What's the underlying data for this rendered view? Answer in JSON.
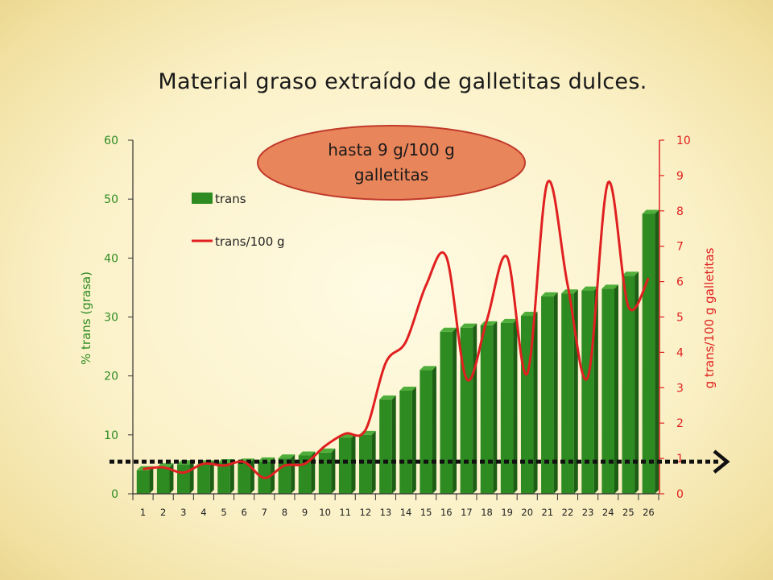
{
  "title": "Material graso extraído de galletitas dulces.",
  "callout": {
    "line1": "hasta 9 g/100 g",
    "line2": "galletitas"
  },
  "colors": {
    "bar": "#2e8b22",
    "bar_dark": "#1d5e15",
    "bar_light": "#4fae3a",
    "line": "#e02020",
    "left_axis": "#2e8b22",
    "right_axis": "#e02020",
    "callout_fill": "#e9855a",
    "callout_stroke": "#c0392b",
    "reference_line": "#111111"
  },
  "chart_data": {
    "type": "bar",
    "categories": [
      "1",
      "2",
      "3",
      "4",
      "5",
      "6",
      "7",
      "8",
      "9",
      "10",
      "11",
      "12",
      "13",
      "14",
      "15",
      "16",
      "17",
      "18",
      "19",
      "20",
      "21",
      "22",
      "23",
      "24",
      "25",
      "26"
    ],
    "series": [
      {
        "name": "trans",
        "axis": "left",
        "values": [
          4,
          4.5,
          5,
          5,
          5.2,
          5.3,
          5.5,
          6,
          6.5,
          7,
          9.5,
          10,
          16,
          17.5,
          21,
          27.5,
          28.2,
          28.6,
          29,
          30.2,
          33.5,
          34,
          34.5,
          34.8,
          37,
          47.5
        ]
      },
      {
        "name": "trans/100 g",
        "type": "line",
        "axis": "right",
        "values": [
          0.7,
          0.75,
          0.6,
          0.85,
          0.8,
          0.9,
          0.45,
          0.8,
          0.85,
          1.35,
          1.7,
          1.8,
          3.7,
          4.3,
          5.9,
          6.7,
          3.25,
          4.9,
          6.7,
          3.4,
          8.8,
          5.9,
          3.3,
          8.8,
          5.3,
          6.1
        ]
      }
    ],
    "xlabel": "",
    "ylabel": "% trans (grasa)",
    "y2label": "g trans/100 g galletitas",
    "ylim": [
      0,
      60
    ],
    "y2lim": [
      0,
      10
    ],
    "yticks": [
      "0",
      "10",
      "20",
      "30",
      "40",
      "50",
      "60"
    ],
    "y2ticks": [
      "0",
      "1",
      "2",
      "3",
      "4",
      "5",
      "6",
      "7",
      "8",
      "9",
      "10"
    ],
    "reference_line_value": 1,
    "legend_position": "top-left",
    "grid": false
  }
}
